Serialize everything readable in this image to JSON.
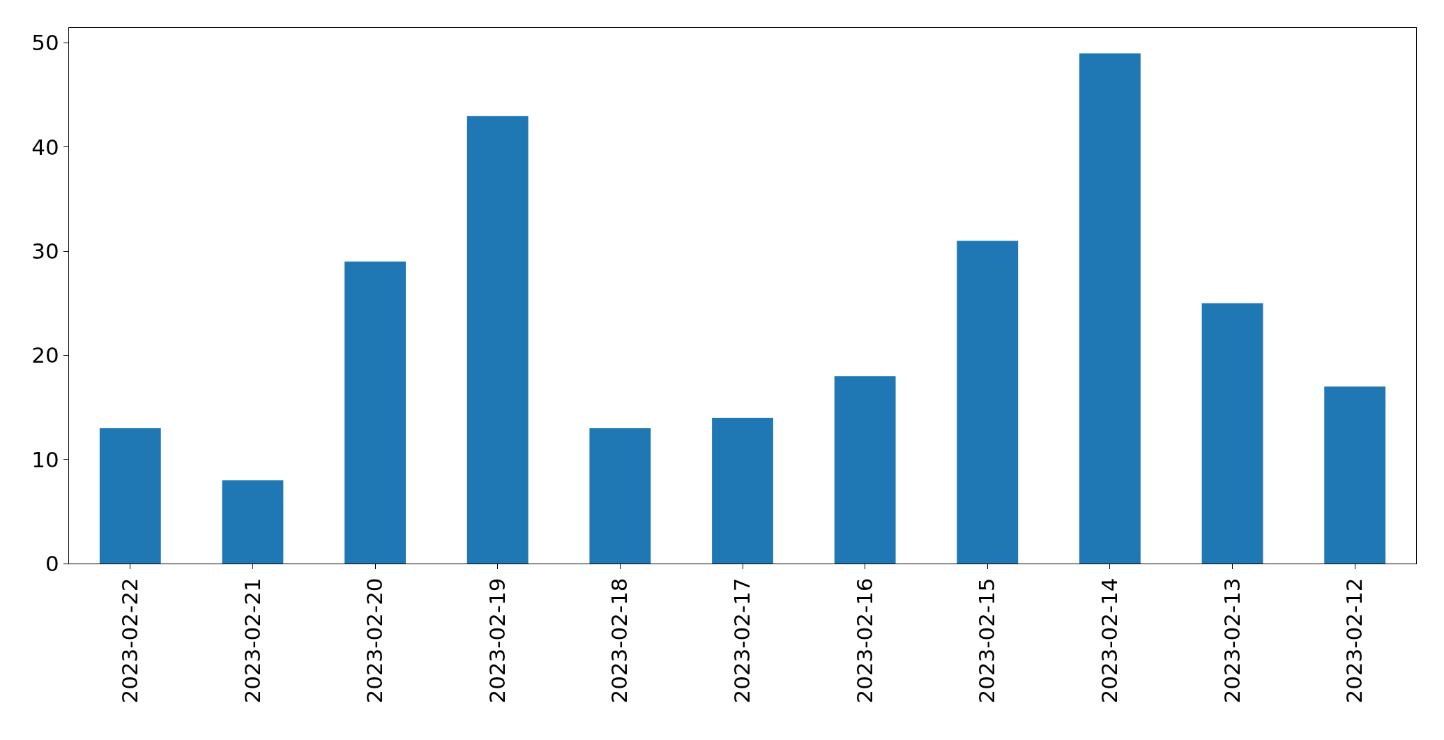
{
  "chart_data": {
    "type": "bar",
    "categories": [
      "2023-02-22",
      "2023-02-21",
      "2023-02-20",
      "2023-02-19",
      "2023-02-18",
      "2023-02-17",
      "2023-02-16",
      "2023-02-15",
      "2023-02-14",
      "2023-02-13",
      "2023-02-12"
    ],
    "values": [
      13,
      8,
      29,
      43,
      13,
      14,
      18,
      31,
      49,
      25,
      17
    ],
    "color": "#1f77b4",
    "ylim": [
      0,
      51.45
    ],
    "yticks": [
      0,
      10,
      20,
      30,
      40,
      50
    ],
    "grid": false
  }
}
